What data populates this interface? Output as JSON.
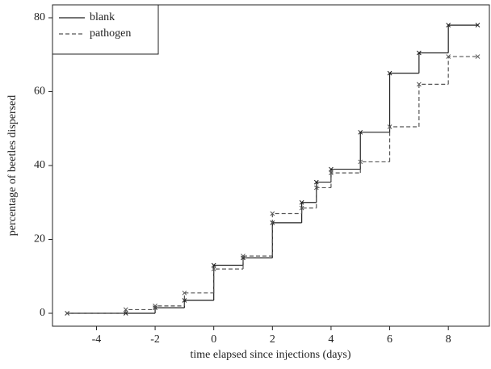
{
  "chart_data": {
    "type": "step",
    "x_label": "time elapsed since injections (days)",
    "y_label": "percentage of beetles dispersed",
    "x": [
      -5,
      -3,
      -2,
      -1,
      0,
      1,
      2,
      3,
      3.5,
      4,
      5,
      6,
      7,
      8,
      9
    ],
    "series": [
      {
        "name": "blank",
        "color": "#222222",
        "line_style": "solid",
        "values": [
          0,
          0,
          1.5,
          3.5,
          13,
          15,
          24.5,
          30,
          35.5,
          39,
          49,
          65,
          70.5,
          78,
          78
        ]
      },
      {
        "name": "pathogen",
        "color": "#555555",
        "line_style": "dashed",
        "values": [
          0,
          1,
          2,
          5.5,
          12,
          15.5,
          27,
          28.5,
          34,
          38,
          41,
          50.5,
          62,
          69.5,
          69.5
        ]
      }
    ],
    "xlim": [
      -5.5,
      9.4
    ],
    "ylim": [
      -3.5,
      83.5
    ],
    "xticks": [
      -4,
      -2,
      0,
      2,
      4,
      6,
      8
    ],
    "yticks": [
      0,
      20,
      40,
      60,
      80
    ],
    "legend": "upper left"
  }
}
